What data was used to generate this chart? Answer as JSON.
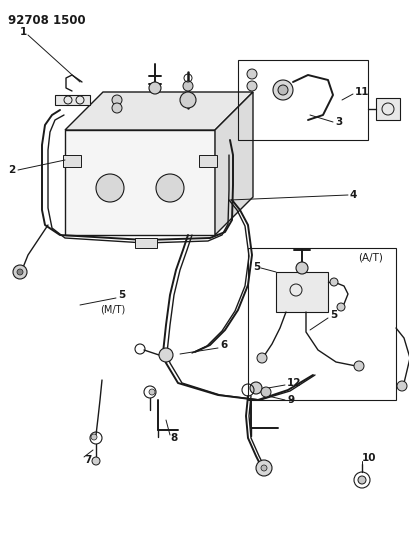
{
  "part_number": "92708 1500",
  "bg_color": "#ffffff",
  "line_color": "#1a1a1a",
  "fig_width": 4.09,
  "fig_height": 5.33,
  "dpi": 100,
  "annotation_font_size": 7.5,
  "part_number_font_size": 8.5,
  "mt_label": "(M/T)",
  "at_label": "(A/T)"
}
